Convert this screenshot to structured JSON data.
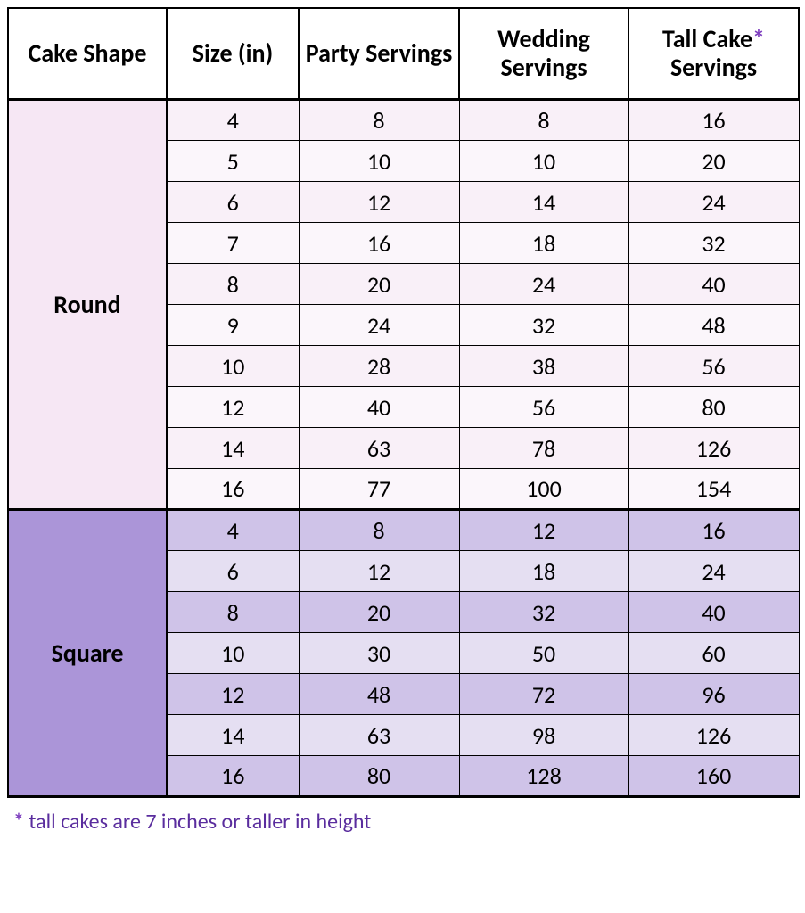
{
  "headers": {
    "shape": "Cake Shape",
    "size": "Size (in)",
    "party": "Party Servings",
    "wedding": "Wedding Servings",
    "tall_pre": "Tall Cake",
    "tall_star": "*",
    "tall_post": " Servings"
  },
  "colors": {
    "round_shape_bg": "#f6e7f4",
    "round_row_odd": "#f9f0f8",
    "round_row_even": "#fbf6fb",
    "square_shape_bg": "#ab95d8",
    "square_row_odd": "#cfc3e8",
    "square_row_even": "#e5dff2",
    "asterisk": "#7e3fbf",
    "footnote_text": "#5a2d9e",
    "text": "#000000"
  },
  "sections": [
    {
      "shape": "Round",
      "shape_bg_key": "round_shape_bg",
      "odd_bg_key": "round_row_odd",
      "even_bg_key": "round_row_even",
      "rows": [
        [
          4,
          8,
          8,
          16
        ],
        [
          5,
          10,
          10,
          20
        ],
        [
          6,
          12,
          14,
          24
        ],
        [
          7,
          16,
          18,
          32
        ],
        [
          8,
          20,
          24,
          40
        ],
        [
          9,
          24,
          32,
          48
        ],
        [
          10,
          28,
          38,
          56
        ],
        [
          12,
          40,
          56,
          80
        ],
        [
          14,
          63,
          78,
          126
        ],
        [
          16,
          77,
          100,
          154
        ]
      ]
    },
    {
      "shape": "Square",
      "shape_bg_key": "square_shape_bg",
      "odd_bg_key": "square_row_odd",
      "even_bg_key": "square_row_even",
      "rows": [
        [
          4,
          8,
          12,
          16
        ],
        [
          6,
          12,
          18,
          24
        ],
        [
          8,
          20,
          32,
          40
        ],
        [
          10,
          30,
          50,
          60
        ],
        [
          12,
          48,
          72,
          96
        ],
        [
          14,
          63,
          98,
          126
        ],
        [
          16,
          80,
          128,
          160
        ]
      ]
    }
  ],
  "footnote": {
    "star": "*",
    "text": " tall cakes are 7 inches or taller in height"
  }
}
